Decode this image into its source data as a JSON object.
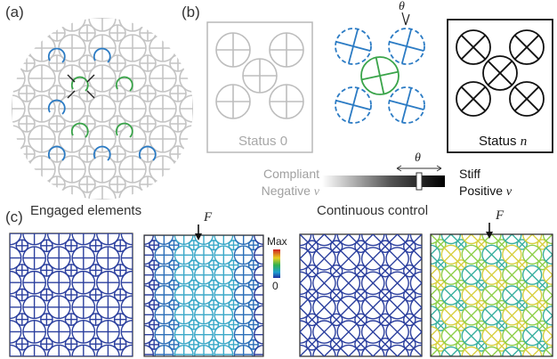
{
  "panels": {
    "a": {
      "label": "(a)",
      "caption": "Engaged elements"
    },
    "b": {
      "label": "(b)",
      "status0": "Status 0",
      "statusn_prefix": "Status ",
      "statusn_var": "n",
      "theta": "θ",
      "caption": "Continuous control",
      "left_line1": "Compliant",
      "left_line2_prefix": "Negative ",
      "left_line2_var": "ν",
      "right_line1": "Stiff",
      "right_line2_prefix": "Positive ",
      "right_line2_var": "ν"
    },
    "c": {
      "label": "(c)",
      "force_label": "F",
      "colorbar_max": "Max",
      "colorbar_min": "0"
    }
  },
  "colors": {
    "grey": "#c0c0c0",
    "blue": "#2b7bc4",
    "green": "#3aa44a",
    "dark": "#1a1a1a",
    "mesh_blue": "#2b3f9e"
  }
}
